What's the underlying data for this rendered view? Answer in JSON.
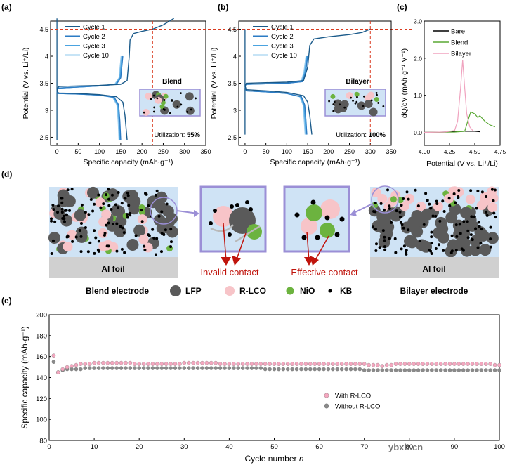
{
  "panel_labels": {
    "a": "(a)",
    "b": "(b)",
    "c": "(c)",
    "d": "(d)",
    "e": "(e)"
  },
  "colors": {
    "cycle1": "#1a5a8a",
    "cycle2": "#2b7bc4",
    "cycle3": "#4aa3e0",
    "cycle10": "#8fc8ee",
    "bare": "#000000",
    "blend": "#5aa834",
    "bilayer": "#f0a3bf",
    "with_rlco": "#f4a7bf",
    "without_rlco": "#8a8a8a",
    "dash": "#d93a1f",
    "arrow": "#c0140c",
    "box": "#9b8fd6",
    "lfp": "#5a5a5a",
    "rlco": "#f7c4c8",
    "nio": "#6cb33f",
    "kb": "#000000",
    "foil": "#d0d0d0",
    "bg": "#cfe3f5"
  },
  "chart_data": [
    {
      "id": "a",
      "type": "line",
      "title": "",
      "xlabel": "Specific capacity (mAh·g⁻¹)",
      "ylabel": "Potential (V vs. Li⁺/Li)",
      "xlim": [
        -15,
        350
      ],
      "ylim": [
        2.35,
        4.65
      ],
      "xticks": [
        0,
        50,
        100,
        150,
        200,
        250,
        300,
        350
      ],
      "yticks": [
        2.5,
        3.0,
        3.5,
        4.0,
        4.5
      ],
      "series": [
        {
          "name": "Cycle 1",
          "charge": [
            [
              0,
              3.35
            ],
            [
              2,
              3.42
            ],
            [
              5,
              3.44
            ],
            [
              50,
              3.45
            ],
            [
              100,
              3.46
            ],
            [
              150,
              3.48
            ],
            [
              165,
              3.55
            ],
            [
              170,
              4.0
            ],
            [
              172,
              4.3
            ],
            [
              180,
              4.42
            ],
            [
              200,
              4.46
            ],
            [
              225,
              4.5
            ],
            [
              250,
              4.58
            ],
            [
              275,
              4.7
            ]
          ],
          "discharge": [
            [
              0,
              3.35
            ],
            [
              2,
              3.33
            ],
            [
              5,
              3.32
            ],
            [
              50,
              3.31
            ],
            [
              100,
              3.29
            ],
            [
              140,
              3.25
            ],
            [
              155,
              3.15
            ],
            [
              160,
              2.9
            ],
            [
              165,
              2.45
            ]
          ]
        },
        {
          "name": "Cycle 2",
          "charge": [
            [
              0,
              3.35
            ],
            [
              2,
              3.41
            ],
            [
              50,
              3.43
            ],
            [
              100,
              3.45
            ],
            [
              140,
              3.48
            ],
            [
              150,
              3.6
            ],
            [
              155,
              4.0
            ]
          ],
          "discharge": [
            [
              0,
              3.35
            ],
            [
              2,
              3.31
            ],
            [
              50,
              3.3
            ],
            [
              100,
              3.28
            ],
            [
              135,
              3.24
            ],
            [
              145,
              3.1
            ],
            [
              148,
              2.8
            ],
            [
              150,
              2.45
            ]
          ]
        },
        {
          "name": "Cycle 3",
          "charge": [
            [
              0,
              3.35
            ],
            [
              2,
              3.41
            ],
            [
              50,
              3.43
            ],
            [
              100,
              3.45
            ],
            [
              138,
              3.48
            ],
            [
              148,
              3.6
            ],
            [
              153,
              4.0
            ]
          ],
          "discharge": [
            [
              0,
              3.35
            ],
            [
              2,
              3.31
            ],
            [
              50,
              3.3
            ],
            [
              100,
              3.28
            ],
            [
              133,
              3.24
            ],
            [
              143,
              3.1
            ],
            [
              146,
              2.8
            ],
            [
              148,
              2.45
            ]
          ]
        },
        {
          "name": "Cycle 10",
          "charge": [
            [
              0,
              3.35
            ],
            [
              2,
              3.41
            ],
            [
              50,
              3.43
            ],
            [
              100,
              3.45
            ],
            [
              136,
              3.48
            ],
            [
              146,
              3.6
            ],
            [
              151,
              4.0
            ]
          ],
          "discharge": [
            [
              0,
              3.35
            ],
            [
              2,
              3.31
            ],
            [
              50,
              3.3
            ],
            [
              100,
              3.28
            ],
            [
              131,
              3.24
            ],
            [
              141,
              3.1
            ],
            [
              144,
              2.8
            ],
            [
              146,
              2.45
            ]
          ]
        }
      ],
      "vertical_start": [
        [
          0,
          4.7
        ],
        [
          0,
          2.45
        ]
      ],
      "guide_x": 225,
      "guide_y": 4.5,
      "inset_title": "Blend",
      "utilization_label": "Utilization:",
      "utilization_value": "55%"
    },
    {
      "id": "b",
      "type": "line",
      "xlabel": "Specific capacity (mAh·g⁻¹)",
      "ylabel": "Potential (V vs. Li⁺/Li)",
      "xlim": [
        -15,
        350
      ],
      "ylim": [
        2.35,
        4.65
      ],
      "xticks": [
        0,
        50,
        100,
        150,
        200,
        250,
        300,
        350
      ],
      "yticks": [
        2.5,
        3.0,
        3.5,
        4.0,
        4.5
      ],
      "series": [
        {
          "name": "Cycle 1",
          "charge": [
            [
              0,
              3.45
            ],
            [
              3,
              3.5
            ],
            [
              50,
              3.51
            ],
            [
              100,
              3.52
            ],
            [
              140,
              3.55
            ],
            [
              150,
              3.8
            ],
            [
              155,
              4.2
            ],
            [
              165,
              4.32
            ],
            [
              200,
              4.36
            ],
            [
              250,
              4.4
            ],
            [
              280,
              4.44
            ],
            [
              300,
              4.5
            ]
          ],
          "discharge": [
            [
              0,
              3.45
            ],
            [
              3,
              3.38
            ],
            [
              50,
              3.36
            ],
            [
              100,
              3.33
            ],
            [
              140,
              3.27
            ],
            [
              150,
              3.15
            ],
            [
              155,
              2.9
            ],
            [
              160,
              2.55
            ]
          ]
        },
        {
          "name": "Cycle 2",
          "charge": [
            [
              0,
              3.45
            ],
            [
              3,
              3.48
            ],
            [
              50,
              3.49
            ],
            [
              100,
              3.5
            ],
            [
              138,
              3.53
            ],
            [
              145,
              3.7
            ],
            [
              150,
              4.0
            ]
          ],
          "discharge": [
            [
              0,
              3.45
            ],
            [
              3,
              3.36
            ],
            [
              50,
              3.34
            ],
            [
              100,
              3.31
            ],
            [
              135,
              3.25
            ],
            [
              143,
              3.1
            ],
            [
              146,
              2.8
            ],
            [
              148,
              2.55
            ]
          ]
        },
        {
          "name": "Cycle 3",
          "charge": [
            [
              0,
              3.45
            ],
            [
              3,
              3.48
            ],
            [
              50,
              3.49
            ],
            [
              100,
              3.5
            ],
            [
              136,
              3.53
            ],
            [
              143,
              3.7
            ],
            [
              148,
              4.0
            ]
          ],
          "discharge": [
            [
              0,
              3.45
            ],
            [
              3,
              3.36
            ],
            [
              50,
              3.34
            ],
            [
              100,
              3.31
            ],
            [
              133,
              3.25
            ],
            [
              141,
              3.1
            ],
            [
              144,
              2.8
            ],
            [
              146,
              2.55
            ]
          ]
        },
        {
          "name": "Cycle 10",
          "charge": [
            [
              0,
              3.45
            ],
            [
              3,
              3.48
            ],
            [
              50,
              3.49
            ],
            [
              100,
              3.5
            ],
            [
              134,
              3.53
            ],
            [
              141,
              3.7
            ],
            [
              146,
              4.0
            ]
          ],
          "discharge": [
            [
              0,
              3.45
            ],
            [
              3,
              3.36
            ],
            [
              50,
              3.34
            ],
            [
              100,
              3.31
            ],
            [
              131,
              3.25
            ],
            [
              139,
              3.1
            ],
            [
              142,
              2.8
            ],
            [
              144,
              2.55
            ]
          ]
        }
      ],
      "vertical_start": [
        [
          0,
          4.5
        ],
        [
          0,
          2.55
        ]
      ],
      "guide_x": 300,
      "guide_y": 4.5,
      "inset_title": "Bilayer",
      "utilization_label": "Utilization:",
      "utilization_value": "100%"
    },
    {
      "id": "c",
      "type": "line",
      "xlabel": "Potential (V vs. Li⁺/Li)",
      "ylabel": "dQ/dV (mAh·g⁻¹·V⁻¹)",
      "xlim": [
        4.0,
        4.75
      ],
      "ylim": [
        -0.35,
        3.0
      ],
      "xticks": [
        4.0,
        4.25,
        4.5,
        4.75
      ],
      "yticks": [
        0.0,
        1.0,
        2.0,
        3.0
      ],
      "series": [
        {
          "name": "Bare",
          "points": [
            [
              4.0,
              0.0
            ],
            [
              4.2,
              0.01
            ],
            [
              4.3,
              0.02
            ],
            [
              4.4,
              0.03
            ],
            [
              4.5,
              0.03
            ],
            [
              4.55,
              0.02
            ]
          ]
        },
        {
          "name": "Blend",
          "points": [
            [
              4.0,
              0.0
            ],
            [
              4.3,
              0.01
            ],
            [
              4.4,
              0.03
            ],
            [
              4.43,
              0.3
            ],
            [
              4.46,
              0.55
            ],
            [
              4.5,
              0.5
            ],
            [
              4.53,
              0.4
            ],
            [
              4.55,
              0.45
            ],
            [
              4.6,
              0.3
            ],
            [
              4.65,
              0.2
            ],
            [
              4.7,
              0.15
            ]
          ]
        },
        {
          "name": "Bilayer",
          "points": [
            [
              4.0,
              0.0
            ],
            [
              4.2,
              0.01
            ],
            [
              4.3,
              0.05
            ],
            [
              4.33,
              0.3
            ],
            [
              4.36,
              1.2
            ],
            [
              4.38,
              1.95
            ],
            [
              4.4,
              1.2
            ],
            [
              4.42,
              0.5
            ],
            [
              4.45,
              0.15
            ],
            [
              4.48,
              0.05
            ]
          ]
        }
      ]
    },
    {
      "id": "e",
      "type": "scatter",
      "xlabel": "Cycle number ",
      "xlabel_italic": "n",
      "ylabel": "Specific capacity (mAh·g⁻¹)",
      "xlim": [
        0,
        100
      ],
      "ylim": [
        80,
        200
      ],
      "xticks": [
        0,
        10,
        20,
        30,
        40,
        50,
        60,
        70,
        80,
        90,
        100
      ],
      "yticks": [
        80,
        100,
        120,
        140,
        160,
        180,
        200
      ],
      "series": [
        {
          "name": "With R-LCO",
          "first": [
            [
              1,
              161
            ]
          ],
          "base": [
            145,
            148,
            150,
            151,
            152,
            153,
            153,
            153,
            154,
            154,
            154,
            154,
            154,
            154,
            154,
            154,
            154,
            153,
            153,
            153,
            153,
            153,
            153,
            153,
            153,
            153,
            153,
            153,
            154,
            154,
            154,
            154,
            154,
            154,
            154,
            154,
            153,
            153,
            153,
            153,
            153,
            153,
            153,
            153,
            153,
            153,
            153,
            153,
            153,
            153,
            153,
            153,
            153,
            153,
            153,
            153,
            153,
            153,
            153,
            153,
            153,
            153,
            153,
            153,
            153,
            153,
            153,
            153,
            153,
            152,
            152,
            152,
            151,
            152,
            152,
            153,
            153,
            153,
            153,
            153,
            153,
            153,
            153,
            153,
            153,
            153,
            153,
            153,
            153,
            153,
            153,
            153,
            153,
            153,
            153,
            153,
            153,
            152,
            152
          ]
        },
        {
          "name": "Without R-LCO",
          "first": [
            [
              1,
              155
            ]
          ],
          "base": [
            145,
            147,
            148,
            148,
            148,
            148,
            149,
            149,
            149,
            149,
            149,
            149,
            149,
            149,
            149,
            149,
            149,
            149,
            149,
            149,
            149,
            149,
            149,
            149,
            149,
            149,
            149,
            149,
            149,
            149,
            149,
            149,
            149,
            149,
            149,
            149,
            149,
            149,
            149,
            149,
            149,
            149,
            149,
            149,
            149,
            149,
            148,
            148,
            148,
            148,
            148,
            148,
            148,
            148,
            148,
            148,
            148,
            148,
            148,
            148,
            148,
            148,
            148,
            148,
            148,
            148,
            148,
            148,
            147,
            147,
            147,
            147,
            147,
            147,
            147,
            147,
            147,
            147,
            147,
            147,
            147,
            147,
            147,
            147,
            147,
            147,
            147,
            147,
            147,
            147,
            147,
            147,
            147,
            147,
            147,
            147,
            147,
            147,
            147
          ]
        }
      ]
    }
  ],
  "schematic": {
    "foil_label_left": "Al   foil",
    "foil_label_right": "Al   foil",
    "invalid_contact": "Invalid contact",
    "effective_contact": "Effective contact",
    "blend_electrode": "Blend electrode",
    "bilayer_electrode": "Bilayer electrode",
    "legend": [
      {
        "label": "LFP",
        "key": "lfp"
      },
      {
        "label": "R-LCO",
        "key": "rlco"
      },
      {
        "label": "NiO",
        "key": "nio"
      },
      {
        "label": "KB",
        "key": "kb"
      }
    ]
  },
  "watermark": "ybxb.cn"
}
